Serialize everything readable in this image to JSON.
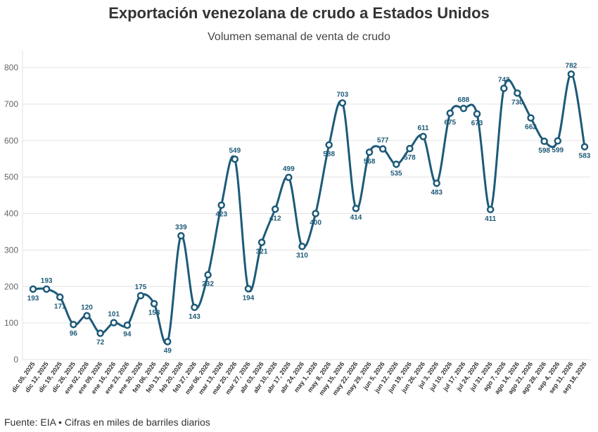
{
  "header": {
    "title": "Exportación venezolana de crudo a Estados Unidos",
    "subtitle": "Volumen semanal de venta de crudo"
  },
  "footer": {
    "source": "Fuente: EIA • Cifras en miles de barriles diarios"
  },
  "colors": {
    "line": "#1d5a78",
    "label": "#1d5a78",
    "grid": "#e3e3e3",
    "marker_fill": "#ffffff"
  },
  "chart_data": {
    "type": "line",
    "title": "Exportación venezolana de crudo a Estados Unidos",
    "subtitle": "Volumen semanal de venta de crudo",
    "xlabel": "",
    "ylabel": "",
    "ylim": [
      0,
      800
    ],
    "yticks": [
      0,
      100,
      200,
      300,
      400,
      500,
      600,
      700,
      800
    ],
    "grid": true,
    "categories": [
      "dic 05, 2025",
      "dic 12, 2025",
      "dic 19, 2025",
      "dic 26, 2025",
      "ene 02, 2026",
      "ene 09, 2026",
      "ene 16, 2026",
      "ene 23, 2026",
      "ene 30, 2026",
      "feb 06, 2026",
      "feb 13, 2026",
      "feb 20, 2026",
      "feb 27, 2026",
      "mar 06, 2026",
      "mar 13, 2026",
      "mar 20, 2026",
      "mar 27, 2026",
      "abr 03, 2026",
      "abr 10, 2026",
      "abr 17, 2026",
      "abr 24, 2026",
      "may 1, 2026",
      "may 8, 2026",
      "may 15, 2026",
      "may 22, 2026",
      "may 29, 2026",
      "jun 5, 2026",
      "jun 12, 2026",
      "jun 19, 2026",
      "jun 26, 2026",
      "jul 3, 2026",
      "jul 10, 2026",
      "jul 17, 2026",
      "jul 24, 2026",
      "jul 31, 2026",
      "ago 7, 2026",
      "ago 14, 2026",
      "ago 21, 2026",
      "ago 28, 2026",
      "sep 4, 2026",
      "sep 11, 2026",
      "sep 18, 2026"
    ],
    "values": [
      193,
      193,
      171,
      96,
      120,
      72,
      101,
      94,
      175,
      153,
      49,
      339,
      143,
      232,
      423,
      549,
      194,
      321,
      412,
      499,
      310,
      400,
      588,
      703,
      414,
      568,
      577,
      535,
      578,
      611,
      483,
      675,
      688,
      673,
      411,
      743,
      730,
      662,
      598,
      599,
      782,
      583
    ]
  }
}
